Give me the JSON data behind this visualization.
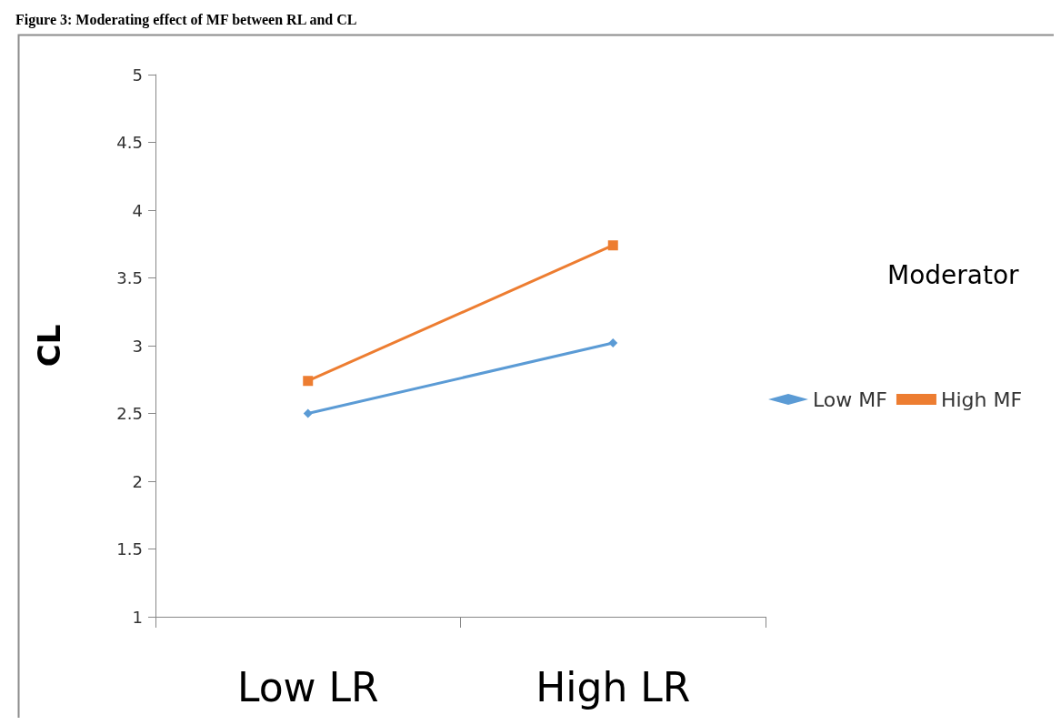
{
  "chart_data": {
    "type": "line",
    "title": "Figure 3: Moderating effect of MF between RL and CL",
    "ylabel": "CL",
    "legend_title": "Moderator",
    "categories": [
      "Low LR",
      "High LR"
    ],
    "series": [
      {
        "name": "Low MF",
        "color": "#5b9bd5",
        "marker": "diamond",
        "values": [
          2.5,
          3.02
        ]
      },
      {
        "name": "High MF",
        "color": "#ed7d31",
        "marker": "square",
        "values": [
          2.74,
          3.74
        ]
      }
    ],
    "ylim": [
      1,
      5
    ],
    "yticks": [
      1,
      1.5,
      2,
      2.5,
      3,
      3.5,
      4,
      4.5,
      5
    ],
    "grid": false,
    "legend": "right"
  }
}
